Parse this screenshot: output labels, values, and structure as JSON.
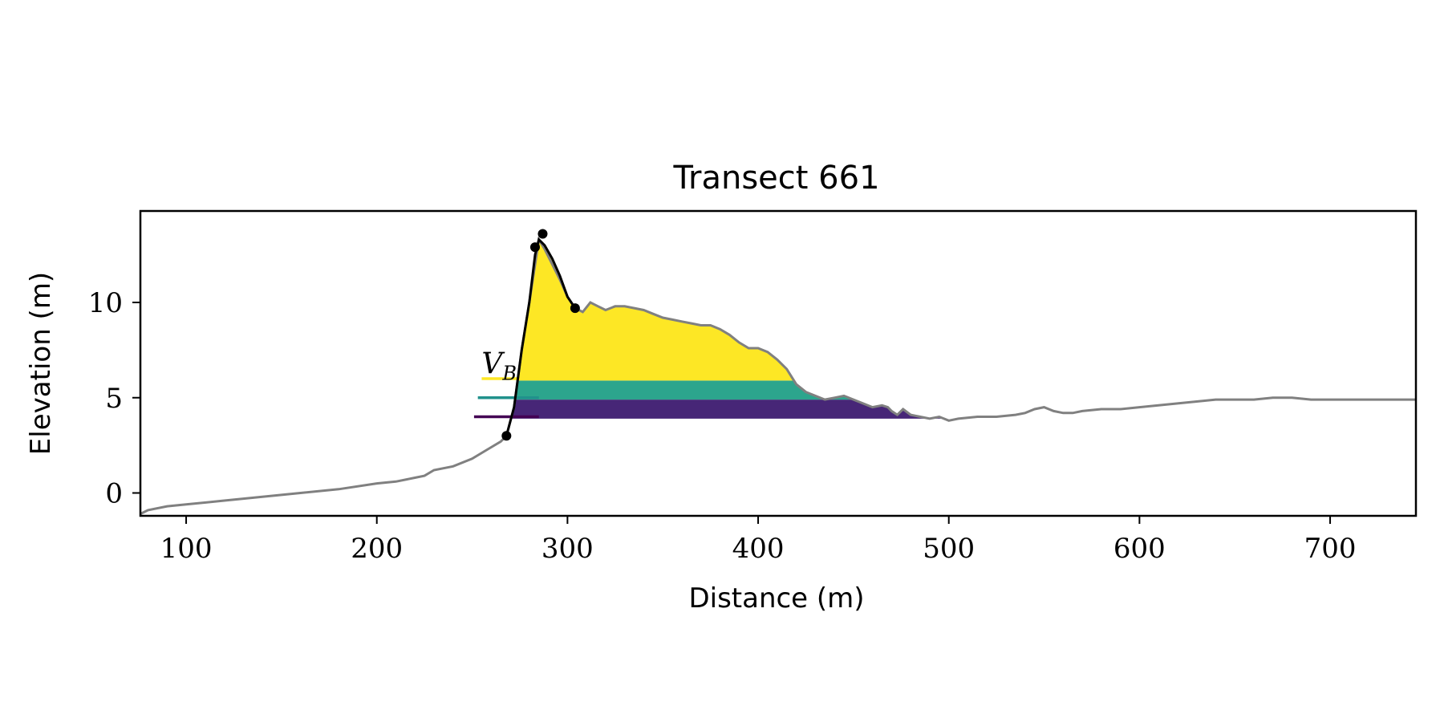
{
  "chart_data": {
    "type": "area",
    "title": "Transect 661",
    "xlabel": "Distance (m)",
    "ylabel": "Elevation (m)",
    "xlim": [
      76,
      745
    ],
    "ylim": [
      -1.2,
      14.8
    ],
    "xticks": [
      100,
      200,
      300,
      400,
      500,
      600,
      700
    ],
    "yticks": [
      0,
      5,
      10
    ],
    "grid": false,
    "profile": {
      "color": "#808080",
      "x": [
        76,
        80,
        90,
        100,
        120,
        140,
        160,
        180,
        200,
        210,
        220,
        225,
        230,
        240,
        250,
        255,
        260,
        265,
        268,
        272,
        276,
        280,
        283,
        285,
        288,
        292,
        296,
        300,
        304,
        308,
        312,
        316,
        320,
        325,
        330,
        335,
        340,
        345,
        350,
        355,
        360,
        365,
        370,
        375,
        380,
        385,
        390,
        395,
        400,
        405,
        410,
        415,
        420,
        425,
        430,
        435,
        440,
        445,
        450,
        455,
        460,
        465,
        468,
        470,
        473,
        476,
        480,
        485,
        490,
        495,
        500,
        505,
        515,
        525,
        535,
        540,
        545,
        550,
        555,
        560,
        565,
        570,
        580,
        590,
        600,
        610,
        620,
        630,
        640,
        650,
        660,
        670,
        680,
        690,
        700,
        710,
        720,
        730,
        740,
        745
      ],
      "y": [
        -1.1,
        -0.9,
        -0.7,
        -0.6,
        -0.4,
        -0.2,
        0.0,
        0.2,
        0.5,
        0.6,
        0.8,
        0.9,
        1.2,
        1.4,
        1.8,
        2.1,
        2.4,
        2.7,
        3.0,
        4.5,
        7.5,
        10.0,
        12.0,
        13.3,
        12.8,
        12.0,
        11.2,
        10.3,
        9.7,
        9.5,
        10.0,
        9.8,
        9.6,
        9.8,
        9.8,
        9.7,
        9.6,
        9.4,
        9.2,
        9.1,
        9.0,
        8.9,
        8.8,
        8.8,
        8.6,
        8.3,
        7.9,
        7.6,
        7.6,
        7.4,
        7.0,
        6.5,
        5.7,
        5.3,
        5.1,
        4.9,
        5.0,
        5.1,
        4.9,
        4.7,
        4.5,
        4.6,
        4.5,
        4.3,
        4.1,
        4.4,
        4.1,
        4.0,
        3.9,
        4.0,
        3.8,
        3.9,
        4.0,
        4.0,
        4.1,
        4.2,
        4.4,
        4.5,
        4.3,
        4.2,
        4.2,
        4.3,
        4.4,
        4.4,
        4.5,
        4.6,
        4.7,
        4.8,
        4.9,
        4.9,
        4.9,
        5.0,
        5.0,
        4.9,
        4.9,
        4.9,
        4.9,
        4.9,
        4.9,
        4.9
      ]
    },
    "dune_line": {
      "color": "#000000",
      "x": [
        268,
        272,
        276,
        280,
        283,
        285,
        288,
        292,
        296,
        300,
        304
      ],
      "y": [
        3.0,
        4.5,
        7.5,
        10.0,
        12.5,
        13.3,
        13.0,
        12.3,
        11.4,
        10.3,
        9.7
      ]
    },
    "dune_points": {
      "color": "#000000",
      "x": [
        268,
        283,
        287,
        304
      ],
      "y": [
        3.0,
        12.9,
        13.6,
        9.7
      ]
    },
    "bands": [
      {
        "y_low": 3.9,
        "y_high": 4.9,
        "color": "#472677",
        "legend_line_y": 4.0,
        "legend_x_start": 251,
        "edge_color": "#440154"
      },
      {
        "y_low": 4.9,
        "y_high": 5.9,
        "color": "#2CA58D",
        "legend_line_y": 5.0,
        "legend_x_start": 253,
        "edge_color": "#21918C"
      },
      {
        "y_low": 5.9,
        "y_high": 14.8,
        "color": "#FDE725",
        "legend_line_y": 6.0,
        "legend_x_start": 255,
        "edge_color": "#FDE725"
      }
    ],
    "annotations": [
      {
        "text": "V",
        "subscript": "B",
        "x": 255,
        "y": 6.1
      }
    ]
  }
}
